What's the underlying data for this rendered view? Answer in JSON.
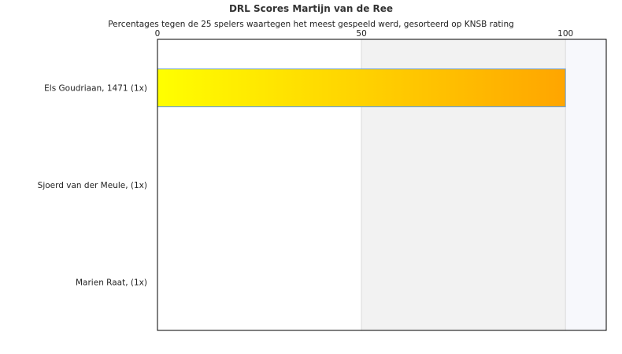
{
  "chart_data": {
    "type": "bar",
    "orientation": "horizontal",
    "title": "DRL Scores Martijn van de Ree",
    "subtitle": "Percentages tegen de 25 spelers waartegen het meest gespeeld werd, gesorteerd op KNSB rating",
    "categories": [
      "Els Goudriaan, 1471 (1x)",
      "Sjoerd van der Meule,  (1x)",
      "Marien Raat,  (1x)"
    ],
    "values": [
      100,
      0,
      0
    ],
    "xlim": [
      0,
      110
    ],
    "xticks": [
      0,
      50,
      100
    ],
    "xtick_labels": [
      "0",
      "50",
      "100"
    ],
    "x_axis_position": "top",
    "grid": true,
    "legend": "none",
    "colors": {
      "bar_start": "#ffff00",
      "bar_end": "#ffa500",
      "bar_border": "#6a9fd4",
      "band_mid": "#f2f2f2",
      "band_end": "#f7f8fc",
      "axis": "#000000"
    }
  }
}
